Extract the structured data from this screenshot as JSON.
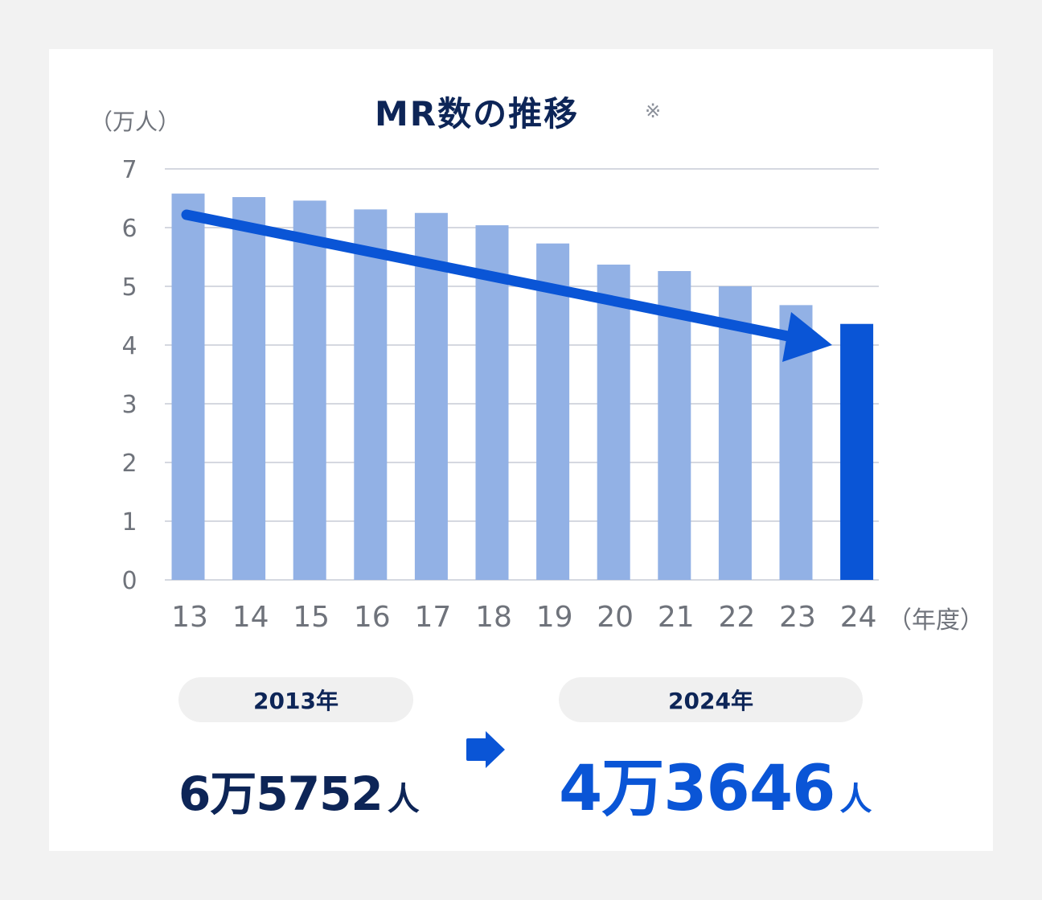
{
  "page": {
    "background": "#f2f2f2",
    "card_background": "#ffffff"
  },
  "header": {
    "title": "MR数の推移",
    "note_mark": "※"
  },
  "axes": {
    "y_unit": "（万人）",
    "x_unit": "（年度）"
  },
  "colors": {
    "bar_default": "#92b1e5",
    "bar_highlight": "#0a55d6",
    "trend_arrow": "#0a55d6",
    "title_text": "#0d2557",
    "axis_text": "#6f737b",
    "gridline": "#d5d8e0",
    "pill_background": "#f0f0f0"
  },
  "chart_data": {
    "type": "bar",
    "title": "MR数の推移",
    "xlabel": "（年度）",
    "ylabel": "（万人）",
    "categories": [
      "13",
      "14",
      "15",
      "16",
      "17",
      "18",
      "19",
      "20",
      "21",
      "22",
      "23",
      "24"
    ],
    "values": [
      6.58,
      6.52,
      6.46,
      6.31,
      6.25,
      6.04,
      5.73,
      5.37,
      5.26,
      5.0,
      4.68,
      4.36
    ],
    "highlight_index": 11,
    "ylim": [
      0,
      7
    ],
    "yticks": [
      0,
      1,
      2,
      3,
      4,
      5,
      6,
      7
    ],
    "grid": true,
    "legend": null,
    "annotations": [
      {
        "type": "trend-arrow",
        "from": "13",
        "to": "24",
        "direction": "down"
      }
    ]
  },
  "comparison": {
    "start": {
      "year_label": "2013年",
      "value": "6万5752",
      "unit": "人"
    },
    "end": {
      "year_label": "2024年",
      "value": "4万3646",
      "unit": "人"
    },
    "arrow_icon": "right-arrow-icon"
  }
}
